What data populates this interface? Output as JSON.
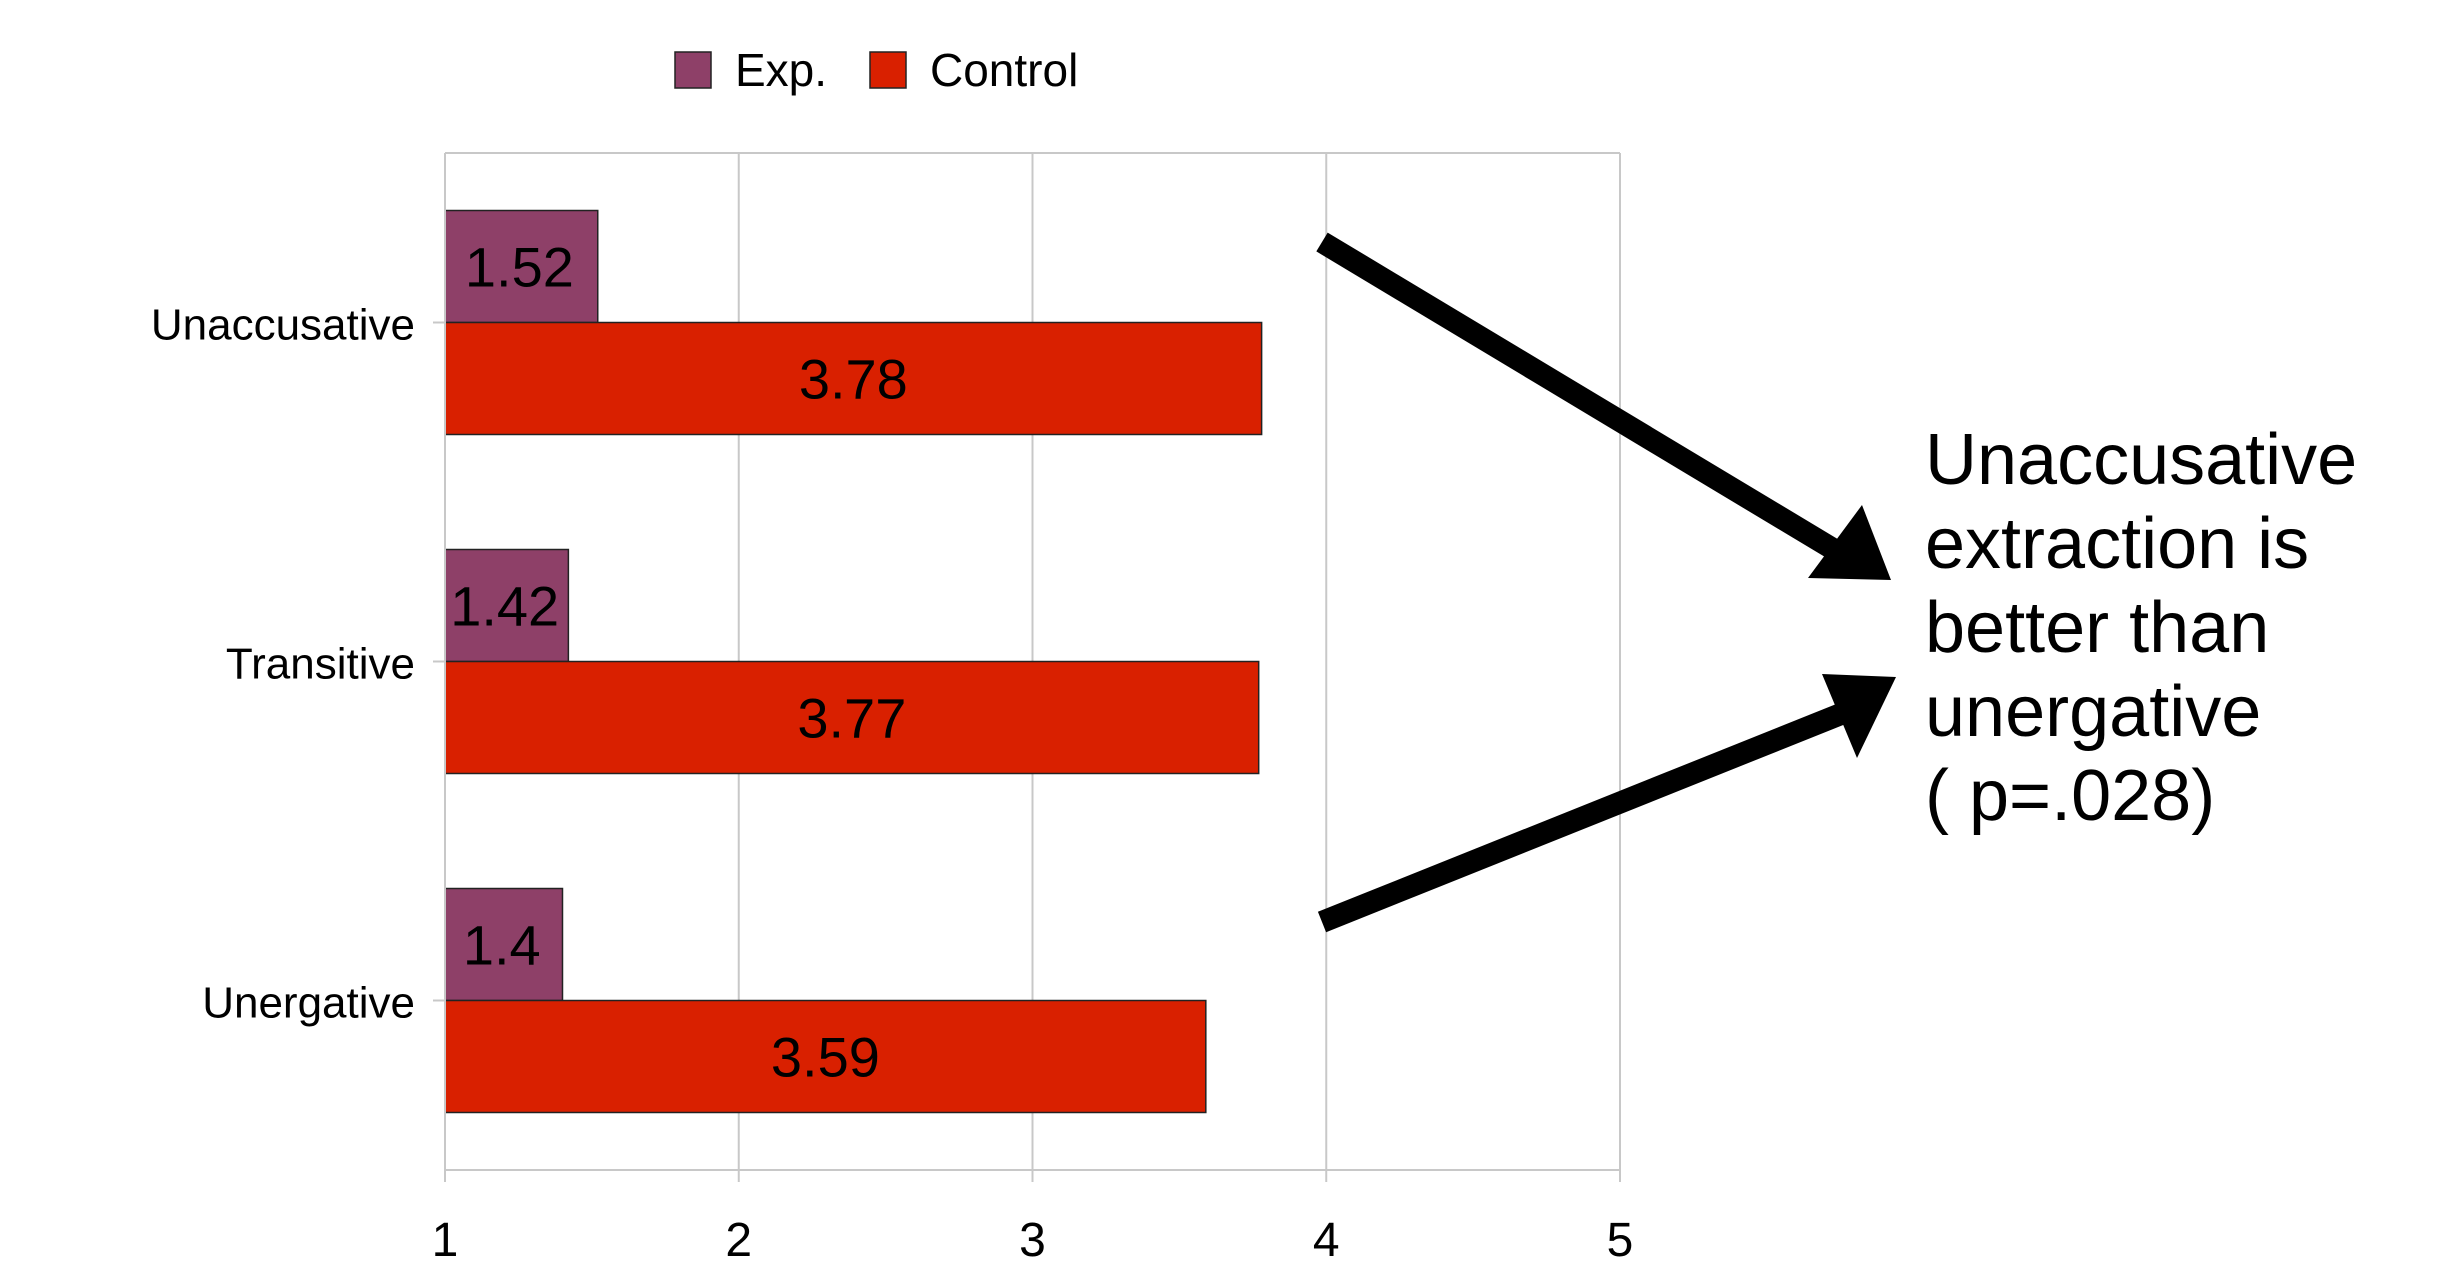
{
  "chart_data": {
    "type": "bar",
    "orientation": "horizontal",
    "categories": [
      "Unaccusative",
      "Transitive",
      "Unergative"
    ],
    "series": [
      {
        "name": "Exp.",
        "values": [
          1.52,
          1.42,
          1.4
        ],
        "labels": [
          "1.52",
          "1.42",
          "1.4"
        ],
        "color": "#8e4068"
      },
      {
        "name": "Control",
        "values": [
          3.78,
          3.77,
          3.59
        ],
        "labels": [
          "3.78",
          "3.77",
          "3.59"
        ],
        "color": "#d92000"
      }
    ],
    "x_ticks": [
      "1",
      "2",
      "3",
      "4",
      "5"
    ],
    "xlim": [
      1,
      5
    ],
    "grid": true,
    "legend_position": "top"
  },
  "annotation": {
    "lines": [
      "Unaccusative",
      "extraction is",
      "better than",
      "unergative",
      "( p=.028)"
    ]
  },
  "colors": {
    "grid": "#c8c8c8",
    "bar_border": "#222222",
    "arrow": "#000000"
  }
}
